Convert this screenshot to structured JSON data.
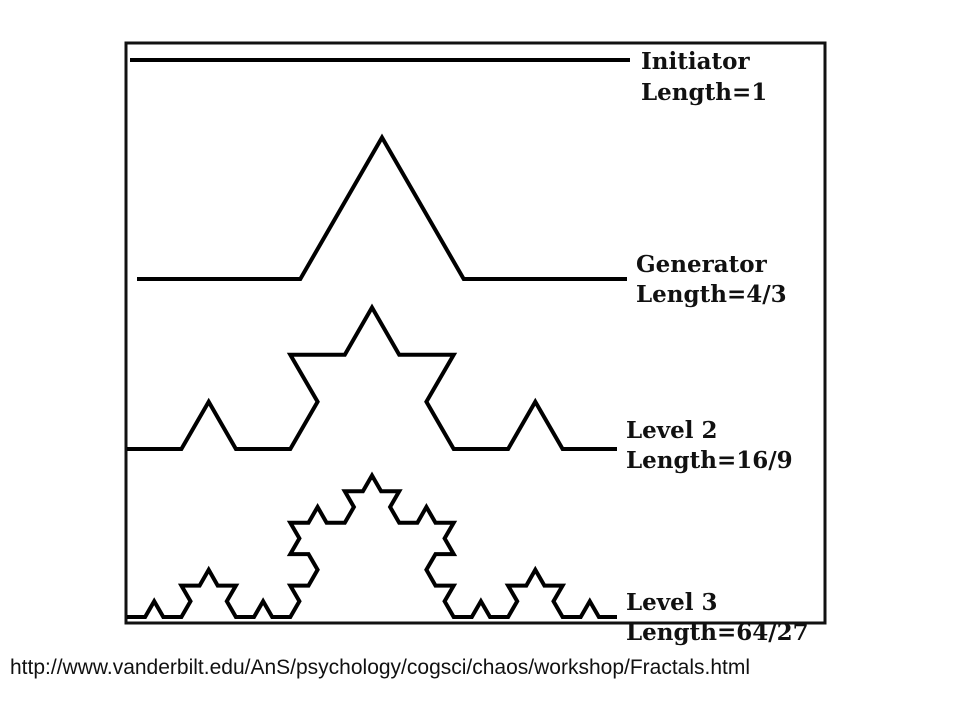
{
  "stages": [
    {
      "id": "initiator",
      "name": "Initiator",
      "length_label": "Length=1",
      "iteration": 0
    },
    {
      "id": "generator",
      "name": "Generator",
      "length_label": "Length=4/3",
      "iteration": 1
    },
    {
      "id": "level-2",
      "name": "Level 2",
      "length_label": "Length=16/9",
      "iteration": 2
    },
    {
      "id": "level-3",
      "name": "Level 3",
      "length_label": "Length=64/27",
      "iteration": 3
    }
  ],
  "source_url": "http://www.vanderbilt.edu/AnS/psychology/cogsci/chaos/workshop/Fractals.html",
  "colors": {
    "line": "#000000",
    "frame": "#111111",
    "background": "#ffffff"
  }
}
